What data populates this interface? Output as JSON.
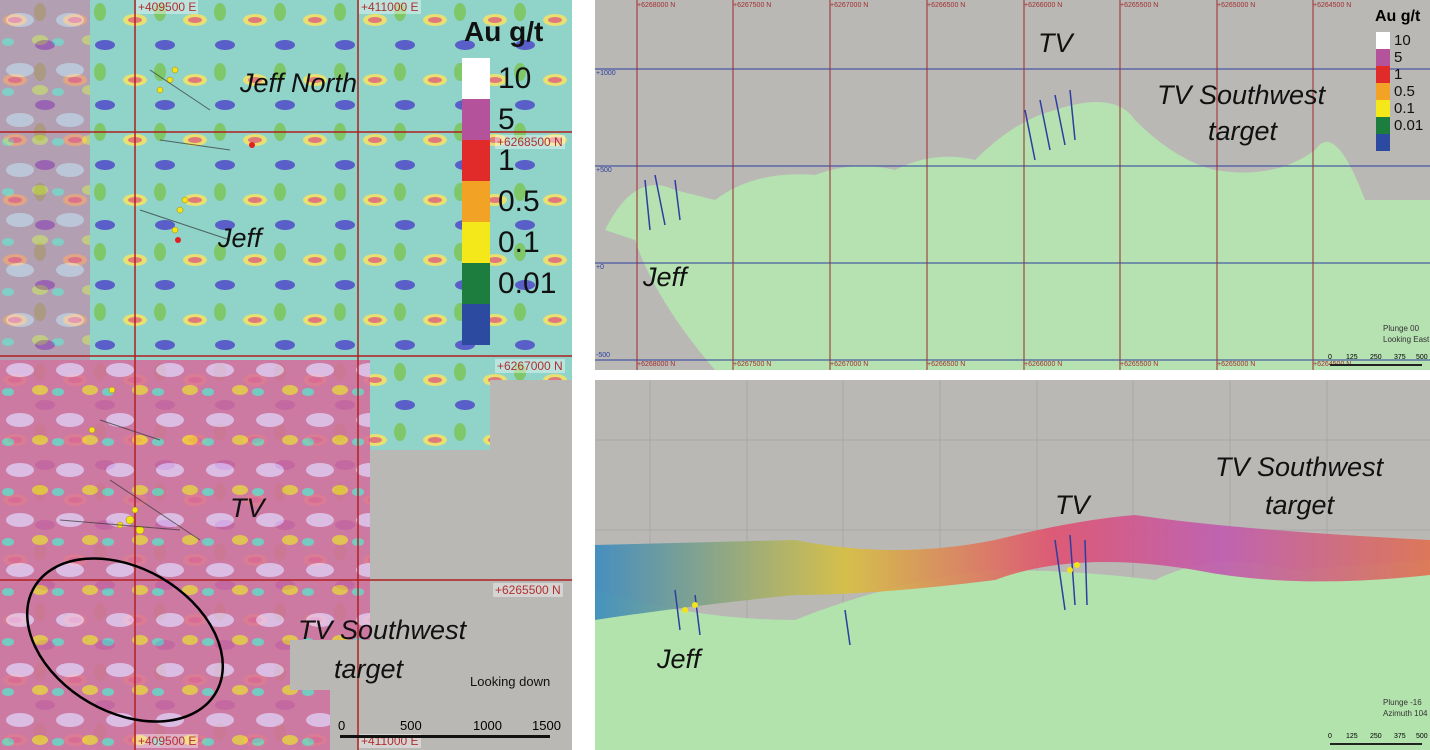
{
  "legend": {
    "title": "Au g/t",
    "items": [
      {
        "label": "10",
        "color": "#ffffff"
      },
      {
        "label": "5",
        "color": "#b5529c"
      },
      {
        "label": "1",
        "color": "#e12a2a"
      },
      {
        "label": "0.5",
        "color": "#f2a225"
      },
      {
        "label": "0.1",
        "color": "#f5e81a"
      },
      {
        "label": "0.01",
        "color": "#1c7d3e"
      },
      {
        "label": "",
        "color": "#2b4aa0"
      }
    ]
  },
  "left_panel": {
    "easting_top": [
      "+409500 E",
      "+411000 E"
    ],
    "easting_bottom": [
      "+409500 E",
      "+411000 E"
    ],
    "northing": [
      "+6268500 N",
      "+6267000 N",
      "+6265500 N"
    ],
    "labels": [
      "Jeff North",
      "Jeff",
      "TV",
      "TV Southwest",
      "target"
    ],
    "view": "Looking down",
    "scale": [
      "0",
      "500",
      "1000",
      "1500"
    ]
  },
  "top_right": {
    "northing_top": [
      "+6268000 N",
      "+6267500 N",
      "+6267000 N",
      "+6266500 N",
      "+6266000 N",
      "+6265500 N",
      "+6265000 N",
      "+6264500 N"
    ],
    "northing_bottom": [
      "+6268000 N",
      "+6267500 N",
      "+6267000 N",
      "+6266500 N",
      "+6266000 N",
      "+6265500 N",
      "+6265000 N",
      "+6264500 N"
    ],
    "elevations": [
      "+1000",
      "+500",
      "+0",
      "-500"
    ],
    "labels": [
      "TV",
      "TV Southwest",
      "target",
      "Jeff"
    ],
    "view": [
      "Plunge 00",
      "Looking East"
    ],
    "scale": [
      "0",
      "125",
      "250",
      "375",
      "500"
    ]
  },
  "bottom_right": {
    "labels": [
      "TV",
      "TV Southwest",
      "target",
      "Jeff"
    ],
    "view": [
      "Plunge -16",
      "Azimuth 104"
    ],
    "scale": [
      "0",
      "125",
      "250",
      "375",
      "500"
    ]
  }
}
